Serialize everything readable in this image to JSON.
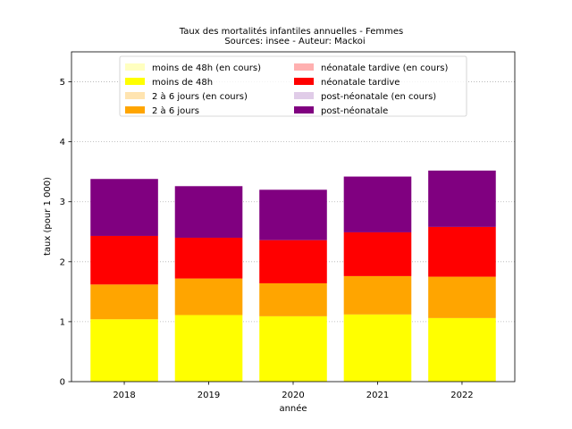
{
  "chart_data": {
    "type": "bar",
    "stacked": true,
    "title": "Taux des mortalités infantiles annuelles - Femmes",
    "subtitle": "Sources: insee - Auteur: Mackoi",
    "xlabel": "année",
    "ylabel": "taux (pour 1 000)",
    "categories": [
      "2018",
      "2019",
      "2020",
      "2021",
      "2022"
    ],
    "ylim": [
      0,
      5.5
    ],
    "yticks": [
      0,
      1,
      2,
      3,
      4,
      5
    ],
    "grid": {
      "y": true,
      "style": "dotted",
      "color": "#b0b0b0"
    },
    "legend": {
      "placement": "top",
      "columns": 2,
      "entries": [
        {
          "label": "moins de 48h (en cours)",
          "color": "#ffffc0"
        },
        {
          "label": "moins de 48h",
          "color": "#ffff00"
        },
        {
          "label": "2 à 6 jours (en cours)",
          "color": "#ffe4b0"
        },
        {
          "label": "2 à 6 jours",
          "color": "#ffa500"
        },
        {
          "label": "néonatale tardive (en cours)",
          "color": "#ffb0b0"
        },
        {
          "label": "néonatale tardive",
          "color": "#ff0000"
        },
        {
          "label": "post-néonatale (en cours)",
          "color": "#e0cce8"
        },
        {
          "label": "post-néonatale",
          "color": "#800080"
        }
      ]
    },
    "series": [
      {
        "name": "moins de 48h",
        "color": "#ffff00",
        "values": [
          1.04,
          1.11,
          1.09,
          1.12,
          1.06
        ]
      },
      {
        "name": "2 à 6 jours",
        "color": "#ffa500",
        "values": [
          0.58,
          0.61,
          0.55,
          0.64,
          0.69
        ]
      },
      {
        "name": "néonatale tardive",
        "color": "#ff0000",
        "values": [
          0.81,
          0.68,
          0.72,
          0.73,
          0.83
        ]
      },
      {
        "name": "post-néonatale",
        "color": "#800080",
        "values": [
          0.95,
          0.86,
          0.84,
          0.93,
          0.94
        ]
      }
    ]
  }
}
